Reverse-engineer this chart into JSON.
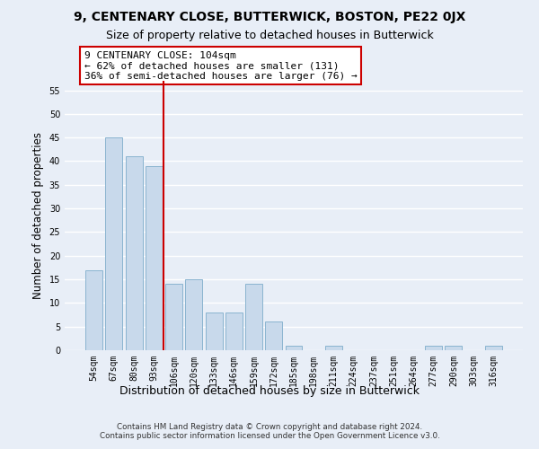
{
  "title": "9, CENTENARY CLOSE, BUTTERWICK, BOSTON, PE22 0JX",
  "subtitle": "Size of property relative to detached houses in Butterwick",
  "xlabel": "Distribution of detached houses by size in Butterwick",
  "ylabel": "Number of detached properties",
  "categories": [
    "54sqm",
    "67sqm",
    "80sqm",
    "93sqm",
    "106sqm",
    "120sqm",
    "133sqm",
    "146sqm",
    "159sqm",
    "172sqm",
    "185sqm",
    "198sqm",
    "211sqm",
    "224sqm",
    "237sqm",
    "251sqm",
    "264sqm",
    "277sqm",
    "290sqm",
    "303sqm",
    "316sqm"
  ],
  "values": [
    17,
    45,
    41,
    39,
    14,
    15,
    8,
    8,
    14,
    6,
    1,
    0,
    1,
    0,
    0,
    0,
    0,
    1,
    1,
    0,
    1
  ],
  "bar_color": "#c8d9eb",
  "bar_edge_color": "#8ab4d0",
  "highlight_index": 4,
  "highlight_color": "#cc0000",
  "annotation_text": "9 CENTENARY CLOSE: 104sqm\n← 62% of detached houses are smaller (131)\n36% of semi-detached houses are larger (76) →",
  "annotation_box_color": "#ffffff",
  "annotation_box_edge_color": "#cc0000",
  "ylim": [
    0,
    57
  ],
  "yticks": [
    0,
    5,
    10,
    15,
    20,
    25,
    30,
    35,
    40,
    45,
    50,
    55
  ],
  "footer_text": "Contains HM Land Registry data © Crown copyright and database right 2024.\nContains public sector information licensed under the Open Government Licence v3.0.",
  "bg_color": "#e8eef7",
  "plot_bg_color": "#e8eef7",
  "grid_color": "#ffffff",
  "title_fontsize": 10,
  "subtitle_fontsize": 9,
  "tick_fontsize": 7,
  "ylabel_fontsize": 8.5,
  "xlabel_fontsize": 9,
  "annotation_fontsize": 8
}
